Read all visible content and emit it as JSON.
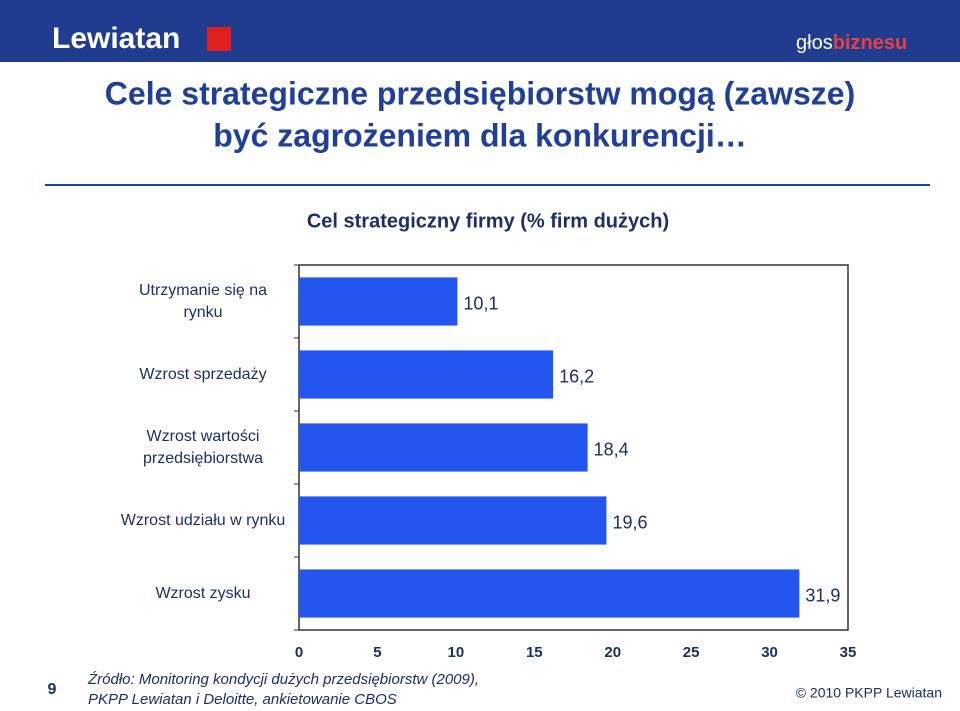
{
  "header": {
    "logo": "Lewiatan",
    "partner_a": "głos",
    "partner_b": "biznesu"
  },
  "slide_title": [
    "Cele strategiczne przedsiębiorstw mogą (zawsze)",
    "być zagrożeniem dla konkurencji…"
  ],
  "chart_data": {
    "type": "hbar",
    "title": "Cel strategiczny firmy (% firm dużych)",
    "categories": [
      "Utrzymanie się na rynku",
      "Wzrost sprzedaży",
      "Wzrost wartości przedsiębiorstwa",
      "Wzrost udziału w rynku",
      "Wzrost zysku"
    ],
    "values": [
      10.1,
      16.2,
      18.4,
      19.6,
      31.9
    ],
    "value_labels": [
      "10,1",
      "16,2",
      "18,4",
      "19,6",
      "31,9"
    ],
    "color": "#2356ee",
    "xlim": [
      0,
      35
    ],
    "xticks": [
      0,
      5,
      10,
      15,
      20,
      25,
      30,
      35
    ]
  },
  "footer": {
    "page": "9",
    "source": [
      "Źródło: Monitoring kondycji dużych przedsiębiorstw (2009),",
      "PKPP Lewiatan i Deloitte, ankietowanie CBOS"
    ],
    "copyright": "© 2010 PKPP Lewiatan"
  }
}
